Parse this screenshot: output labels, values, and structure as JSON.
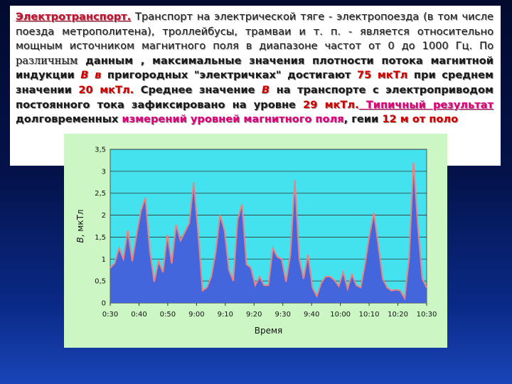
{
  "text": {
    "heading": "Электротранспорт.",
    "p1": " Транспорт на электрической тяге - электропоезда (в том числе поезда метрополитена), троллейбусы, трамваи и т. п. - является относительно мощным источником магнитного поля в диапазоне частот от 0 до 1000 Гц. По ",
    "p1_serif": "различным",
    "p2": " данным , максимальные значения плотности потока магнитной индукции ",
    "b_symbol_1": "В в",
    "p3": " пригородных \"электричках\" достигают ",
    "value_75": "75 мкТл",
    "p4": " при среднем значении ",
    "value_20": "20 мкТл.",
    "p5": " Среднее значение ",
    "b_symbol_2": "В",
    "p6": " на транспорте с электроприводом постоянного тока зафиксировано на уровне ",
    "value_29": "29 мкТл.",
    "p7_pink": " Типичный результат",
    "p8": " долговременных ",
    "p9_pink": "измерений уровней магнитного поля",
    "p10": ", ге",
    "p11": "ии ",
    "value_12": "12 м",
    "p12": " от поло"
  },
  "chart_data": {
    "type": "area",
    "xlabel": "Время",
    "ylabel_symbol": "В",
    "ylabel_unit": ", мкТл",
    "ylim": [
      0,
      3.5
    ],
    "yticks": [
      "0",
      "0,5",
      "1",
      "1,5",
      "2",
      "2,5",
      "3",
      "3,5"
    ],
    "xticks": [
      "0:30",
      "0:40",
      "0:50",
      "9:00",
      "9:10",
      "9:20",
      "9:30",
      "9:40",
      "10:00",
      "10:10",
      "10:20",
      "10:30"
    ],
    "grid": true,
    "fill_color": "#4466dd",
    "line_color": "#ee8080",
    "plot_background": "#44e2ee",
    "values": [
      0.8,
      0.9,
      1.25,
      1.0,
      1.65,
      0.95,
      1.55,
      2.1,
      2.4,
      1.2,
      0.48,
      0.95,
      0.7,
      1.55,
      0.9,
      1.78,
      1.42,
      1.62,
      1.82,
      2.75,
      1.6,
      0.28,
      0.35,
      0.6,
      1.15,
      2.0,
      1.65,
      0.75,
      0.5,
      1.9,
      2.25,
      0.88,
      0.8,
      0.4,
      0.6,
      0.4,
      0.4,
      1.25,
      1.05,
      1.0,
      0.48,
      1.1,
      2.8,
      1.0,
      0.55,
      1.1,
      0.35,
      0.15,
      0.45,
      0.6,
      0.6,
      0.52,
      0.38,
      0.7,
      0.32,
      0.65,
      0.4,
      0.35,
      0.9,
      1.55,
      2.05,
      1.3,
      0.55,
      0.35,
      0.28,
      0.3,
      0.28,
      0.1,
      1.0,
      3.2,
      1.75,
      0.55,
      0.35
    ]
  }
}
